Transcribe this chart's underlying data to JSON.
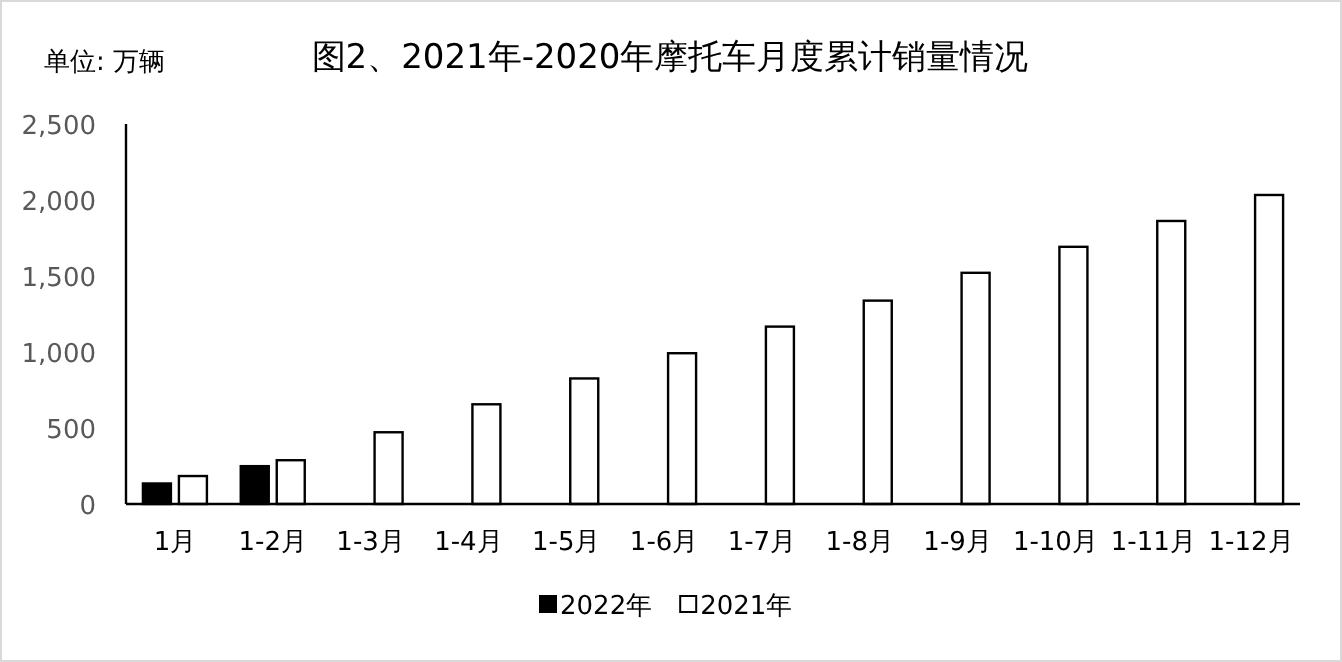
{
  "chart_data": {
    "type": "bar",
    "title": "图2、2021年-2020年摩托车月度累计销量情况",
    "annotations": [
      "单位:  万辆"
    ],
    "categories": [
      "1月",
      "1-2月",
      "1-3月",
      "1-4月",
      "1-5月",
      "1-6月",
      "1-7月",
      "1-8月",
      "1-9月",
      "1-10月",
      "1-11月",
      "1-12月"
    ],
    "series": [
      {
        "name": "2022年",
        "color": "#000000",
        "values": [
          135,
          249,
          null,
          null,
          null,
          null,
          null,
          null,
          null,
          null,
          null,
          null
        ]
      },
      {
        "name": "2021年",
        "color": "#ffffff",
        "values": [
          184,
          288,
          472,
          656,
          826,
          992,
          1167,
          1338,
          1521,
          1692,
          1862,
          2033
        ]
      }
    ],
    "ylim": [
      0,
      2500
    ],
    "yticks": [
      {
        "value": 0,
        "label": "0"
      },
      {
        "value": 500,
        "label": "500"
      },
      {
        "value": 1000,
        "label": "1,000"
      },
      {
        "value": 1500,
        "label": "1,500"
      },
      {
        "value": 2000,
        "label": "2,000"
      },
      {
        "value": 2500,
        "label": "2,500"
      }
    ],
    "grid": false,
    "legend": "bottom"
  }
}
